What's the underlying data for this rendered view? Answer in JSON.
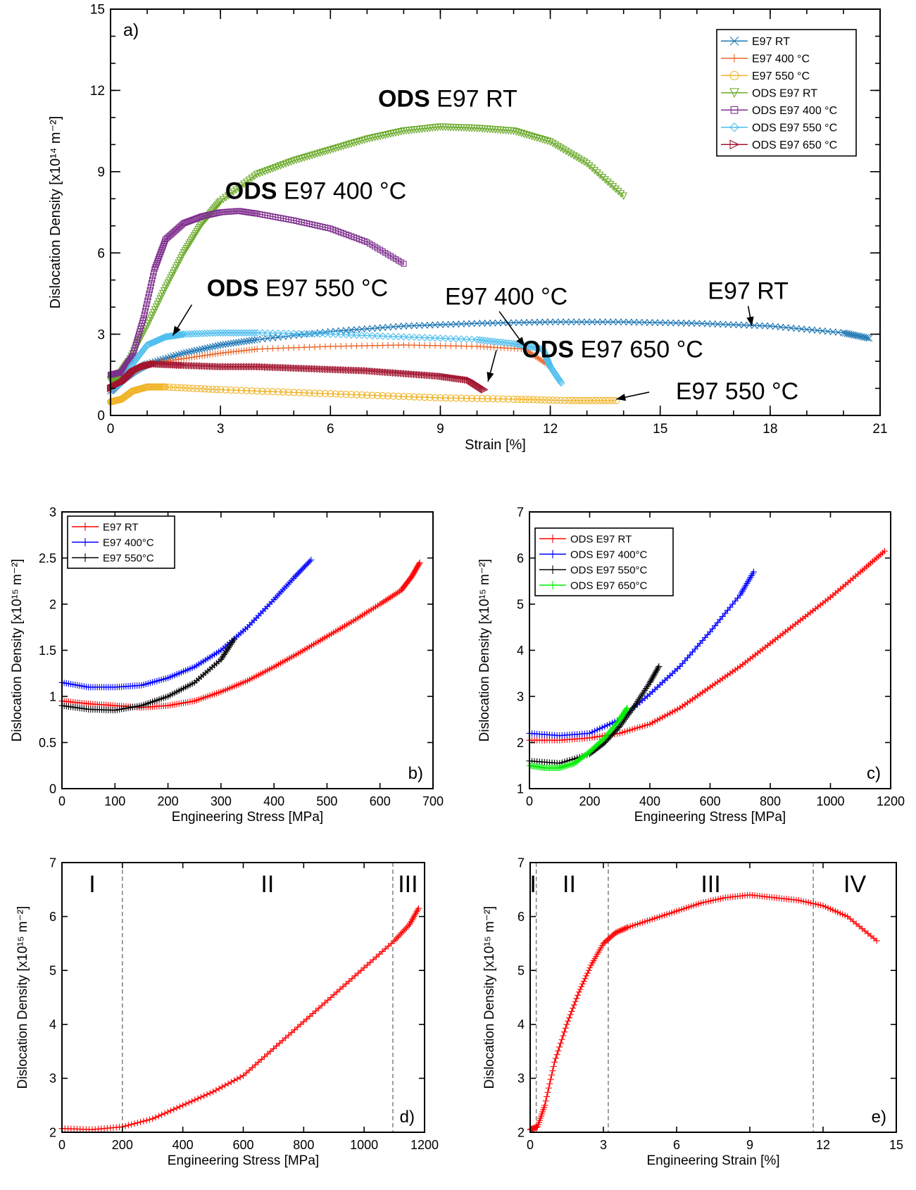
{
  "chart_data": [
    {
      "id": "a",
      "type": "line",
      "panel_label": "a)",
      "xlabel": "Strain  [%]",
      "ylabel": "Dislocation Density  [x10¹⁴ m⁻²]",
      "xlim": [
        0,
        21
      ],
      "ylim": [
        0,
        15
      ],
      "xticks": [
        0,
        3,
        6,
        9,
        12,
        15,
        18,
        21
      ],
      "yticks": [
        0,
        3,
        6,
        9,
        12,
        15
      ],
      "legend": "top-right",
      "series": [
        {
          "name": "E97 RT",
          "color": "#1f77b4",
          "marker": "x",
          "x": [
            0,
            0.3,
            0.6,
            1.0,
            2,
            3,
            4,
            6,
            8,
            10,
            12,
            14,
            16,
            18,
            20,
            20.7
          ],
          "y": [
            0.9,
            1.3,
            1.6,
            1.9,
            2.3,
            2.6,
            2.8,
            3.1,
            3.3,
            3.4,
            3.45,
            3.45,
            3.4,
            3.3,
            3.05,
            2.85
          ]
        },
        {
          "name": "E97 400 °C",
          "color": "#e8662a",
          "marker": "+",
          "x": [
            0,
            0.3,
            0.6,
            1.0,
            2,
            3,
            4,
            6,
            8,
            10,
            11.3,
            11.9
          ],
          "y": [
            1.0,
            1.3,
            1.6,
            1.9,
            2.1,
            2.3,
            2.45,
            2.55,
            2.6,
            2.55,
            2.45,
            1.9
          ]
        },
        {
          "name": "E97 550 °C",
          "color": "#f0b429",
          "marker": "o",
          "x": [
            0,
            0.3,
            0.6,
            1.0,
            1.5,
            3,
            5,
            7,
            9,
            11,
            12.5,
            13.8
          ],
          "y": [
            0.5,
            0.6,
            0.9,
            1.05,
            1.05,
            0.95,
            0.85,
            0.75,
            0.65,
            0.6,
            0.55,
            0.55
          ]
        },
        {
          "name": "ODS E97 RT",
          "color": "#6aaa2a",
          "marker": "v",
          "x": [
            0,
            0.2,
            0.5,
            1.0,
            1.5,
            2,
            2.5,
            3,
            4,
            5,
            6,
            7,
            8,
            9,
            10,
            11,
            12,
            13,
            14
          ],
          "y": [
            1.3,
            1.4,
            2.0,
            3.3,
            4.7,
            6.0,
            7.1,
            7.9,
            8.9,
            9.4,
            9.8,
            10.2,
            10.5,
            10.65,
            10.6,
            10.5,
            10.1,
            9.3,
            8.1
          ]
        },
        {
          "name": "ODS E97 400 °C",
          "color": "#7e2f8e",
          "marker": "s",
          "x": [
            0,
            0.3,
            0.6,
            0.9,
            1.2,
            1.5,
            2,
            2.5,
            3,
            3.5,
            4,
            5,
            6,
            7,
            8
          ],
          "y": [
            1.5,
            1.6,
            2.2,
            3.6,
            5.4,
            6.5,
            7.1,
            7.35,
            7.5,
            7.55,
            7.45,
            7.2,
            6.9,
            6.4,
            5.6
          ]
        },
        {
          "name": "ODS E97 550 °C",
          "color": "#4dbeee",
          "marker": "d",
          "x": [
            0,
            0.3,
            0.6,
            1.0,
            1.5,
            2,
            3,
            4,
            6,
            8,
            10,
            11,
            11.8,
            12,
            12.3
          ],
          "y": [
            1.0,
            1.2,
            1.9,
            2.6,
            2.9,
            3.0,
            3.05,
            3.05,
            3.0,
            2.9,
            2.8,
            2.65,
            2.45,
            1.8,
            1.2
          ]
        },
        {
          "name": "ODS E97 650 °C",
          "color": "#a2142f",
          "marker": ">",
          "x": [
            0,
            0.3,
            0.6,
            0.9,
            1.2,
            2,
            3,
            4,
            5,
            6,
            7,
            8,
            9,
            9.8,
            10.2
          ],
          "y": [
            1.0,
            1.2,
            1.6,
            1.8,
            1.9,
            1.85,
            1.8,
            1.8,
            1.75,
            1.7,
            1.65,
            1.55,
            1.45,
            1.3,
            0.95
          ]
        }
      ],
      "annotations": [
        {
          "bold": "ODS",
          "text": " E97 RT",
          "x": 9.2,
          "y": 11.4
        },
        {
          "bold": "ODS",
          "text": " E97 400 °C",
          "x": 5.6,
          "y": 8.0
        },
        {
          "bold": "ODS",
          "text": " E97 550 °C",
          "x": 5.1,
          "y": 4.4,
          "arrow_to": [
            1.7,
            2.95
          ]
        },
        {
          "bold": "",
          "text": "E97 400 °C",
          "x": 10.8,
          "y": 4.1,
          "arrow_to": [
            11.3,
            2.55
          ]
        },
        {
          "bold": "ODS",
          "text": " E97 650 °C",
          "x": 13.7,
          "y": 2.15,
          "arrow_to": [
            10.3,
            1.25
          ]
        },
        {
          "bold": "",
          "text": "E97 RT",
          "x": 17.4,
          "y": 4.3,
          "arrow_to": [
            17.5,
            3.3
          ]
        },
        {
          "bold": "",
          "text": "E97 550 °C",
          "x": 17.1,
          "y": 0.6,
          "arrow_to": [
            13.8,
            0.6
          ]
        }
      ]
    },
    {
      "id": "b",
      "type": "line",
      "panel_label": "b)",
      "xlabel": "Engineering Stress [MPa]",
      "ylabel": "Dislocation Density [x10¹⁵ m⁻²]",
      "xlim": [
        0,
        700
      ],
      "ylim": [
        0,
        3
      ],
      "xticks": [
        0,
        100,
        200,
        300,
        400,
        500,
        600,
        700
      ],
      "yticks": [
        0,
        0.5,
        1,
        1.5,
        2,
        2.5,
        3
      ],
      "legend": "top-left",
      "series": [
        {
          "name": "E97 RT",
          "color": "#ff0000",
          "marker": "+",
          "x": [
            0,
            50,
            100,
            150,
            200,
            250,
            300,
            350,
            400,
            450,
            500,
            550,
            600,
            640,
            660,
            675
          ],
          "y": [
            0.95,
            0.92,
            0.9,
            0.88,
            0.9,
            0.95,
            1.05,
            1.17,
            1.32,
            1.48,
            1.65,
            1.82,
            2.0,
            2.15,
            2.3,
            2.45
          ]
        },
        {
          "name": "E97 400°C",
          "color": "#0000ff",
          "marker": "+",
          "x": [
            0,
            50,
            100,
            150,
            200,
            250,
            300,
            350,
            400,
            440,
            470
          ],
          "y": [
            1.15,
            1.1,
            1.1,
            1.12,
            1.2,
            1.32,
            1.5,
            1.75,
            2.05,
            2.3,
            2.48
          ]
        },
        {
          "name": "E97 550°C",
          "color": "#000000",
          "marker": "+",
          "x": [
            0,
            50,
            100,
            150,
            200,
            250,
            300,
            325
          ],
          "y": [
            0.9,
            0.86,
            0.85,
            0.9,
            1.0,
            1.15,
            1.4,
            1.62
          ]
        }
      ]
    },
    {
      "id": "c",
      "type": "line",
      "panel_label": "c)",
      "xlabel": "Engineering Stress [MPa]",
      "ylabel": "Dislocation Density [x10¹⁵ m⁻²]",
      "xlim": [
        0,
        1200
      ],
      "ylim": [
        1,
        7
      ],
      "xticks": [
        0,
        200,
        400,
        600,
        800,
        1000,
        1200
      ],
      "yticks": [
        1,
        2,
        3,
        4,
        5,
        6,
        7
      ],
      "legend": "top-left",
      "series": [
        {
          "name": "ODS E97 RT",
          "color": "#ff0000",
          "marker": "+",
          "x": [
            0,
            100,
            200,
            300,
            400,
            500,
            600,
            700,
            800,
            900,
            1000,
            1100,
            1180
          ],
          "y": [
            2.05,
            2.05,
            2.1,
            2.2,
            2.4,
            2.75,
            3.2,
            3.65,
            4.15,
            4.65,
            5.15,
            5.7,
            6.15
          ]
        },
        {
          "name": "ODS E97 400°C",
          "color": "#0000ff",
          "marker": "+",
          "x": [
            0,
            100,
            200,
            300,
            400,
            500,
            600,
            700,
            745
          ],
          "y": [
            2.2,
            2.15,
            2.2,
            2.5,
            3.05,
            3.65,
            4.4,
            5.2,
            5.7
          ]
        },
        {
          "name": "ODS E97 550°C",
          "color": "#000000",
          "marker": "+",
          "x": [
            0,
            100,
            200,
            250,
            300,
            350,
            400,
            430
          ],
          "y": [
            1.6,
            1.55,
            1.75,
            2.0,
            2.35,
            2.8,
            3.3,
            3.65
          ]
        },
        {
          "name": "ODS E97 650°C",
          "color": "#00ee00",
          "marker": "+",
          "x": [
            0,
            50,
            100,
            150,
            200,
            250,
            300,
            325
          ],
          "y": [
            1.5,
            1.45,
            1.45,
            1.55,
            1.8,
            2.1,
            2.5,
            2.75
          ]
        }
      ]
    },
    {
      "id": "d",
      "type": "line",
      "panel_label": "d)",
      "xlabel": "Engineering Stress [MPa]",
      "ylabel": "Dislocation Density [x10¹⁵ m⁻²]",
      "xlim": [
        0,
        1200
      ],
      "ylim": [
        2,
        7
      ],
      "xticks": [
        0,
        200,
        400,
        600,
        800,
        1000,
        1200
      ],
      "yticks": [
        2,
        3,
        4,
        5,
        6,
        7
      ],
      "stage_lines": [
        200,
        1095
      ],
      "stages": [
        {
          "label": "I",
          "x": 100
        },
        {
          "label": "II",
          "x": 680
        },
        {
          "label": "III",
          "x": 1145
        }
      ],
      "series": [
        {
          "name": "",
          "color": "#ff0000",
          "marker": "+",
          "x": [
            0,
            100,
            200,
            300,
            400,
            500,
            600,
            700,
            800,
            900,
            1000,
            1100,
            1150,
            1180
          ],
          "y": [
            2.07,
            2.05,
            2.1,
            2.25,
            2.5,
            2.75,
            3.05,
            3.55,
            4.05,
            4.55,
            5.05,
            5.55,
            5.85,
            6.15
          ]
        }
      ]
    },
    {
      "id": "e",
      "type": "line",
      "panel_label": "e)",
      "xlabel": "Engineering Strain [%]",
      "ylabel": "Dislocation Density [x10¹⁵ m⁻²]",
      "xlim": [
        0,
        15
      ],
      "ylim": [
        2,
        7
      ],
      "xticks": [
        0,
        3,
        6,
        9,
        12,
        15
      ],
      "yticks": [
        2,
        3,
        4,
        5,
        6,
        7
      ],
      "stage_lines": [
        0.25,
        3.2,
        11.6
      ],
      "stages": [
        {
          "label": "I",
          "x": 0.12
        },
        {
          "label": "II",
          "x": 1.6
        },
        {
          "label": "III",
          "x": 7.4
        },
        {
          "label": "IV",
          "x": 13.3
        }
      ],
      "series": [
        {
          "name": "",
          "color": "#ff0000",
          "marker": "+",
          "x": [
            0,
            0.3,
            0.6,
            1.0,
            1.5,
            2.0,
            2.5,
            3.0,
            3.5,
            4.0,
            5,
            6,
            7,
            8,
            9,
            10,
            11,
            12,
            13,
            14.2
          ],
          "y": [
            2.05,
            2.1,
            2.5,
            3.3,
            4.0,
            4.6,
            5.1,
            5.5,
            5.7,
            5.8,
            5.95,
            6.1,
            6.25,
            6.35,
            6.4,
            6.35,
            6.3,
            6.2,
            6.0,
            5.55
          ]
        }
      ]
    }
  ]
}
